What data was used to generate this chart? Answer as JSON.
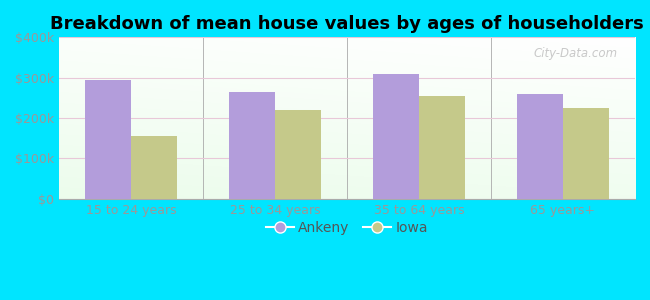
{
  "title": "Breakdown of mean house values by ages of householders",
  "categories": [
    "15 to 24 years",
    "25 to 34 years",
    "35 to 64 years",
    "65 years+"
  ],
  "ankeny_values": [
    295000,
    265000,
    310000,
    260000
  ],
  "iowa_values": [
    155000,
    220000,
    255000,
    225000
  ],
  "ankeny_color": "#b39ddb",
  "iowa_color": "#c5c98a",
  "background_outer": "#00e5ff",
  "ylim": [
    0,
    400000
  ],
  "yticks": [
    0,
    100000,
    200000,
    300000,
    400000
  ],
  "ytick_labels": [
    "$0",
    "$100k",
    "$200k",
    "$300k",
    "$400k"
  ],
  "bar_width": 0.32,
  "legend_labels": [
    "Ankeny",
    "Iowa"
  ],
  "title_fontsize": 13,
  "tick_fontsize": 9,
  "legend_fontsize": 10,
  "watermark_text": "City-Data.com",
  "tick_color": "#999999",
  "grid_color": "#e8c8d8",
  "separator_color": "#aaaaaa"
}
